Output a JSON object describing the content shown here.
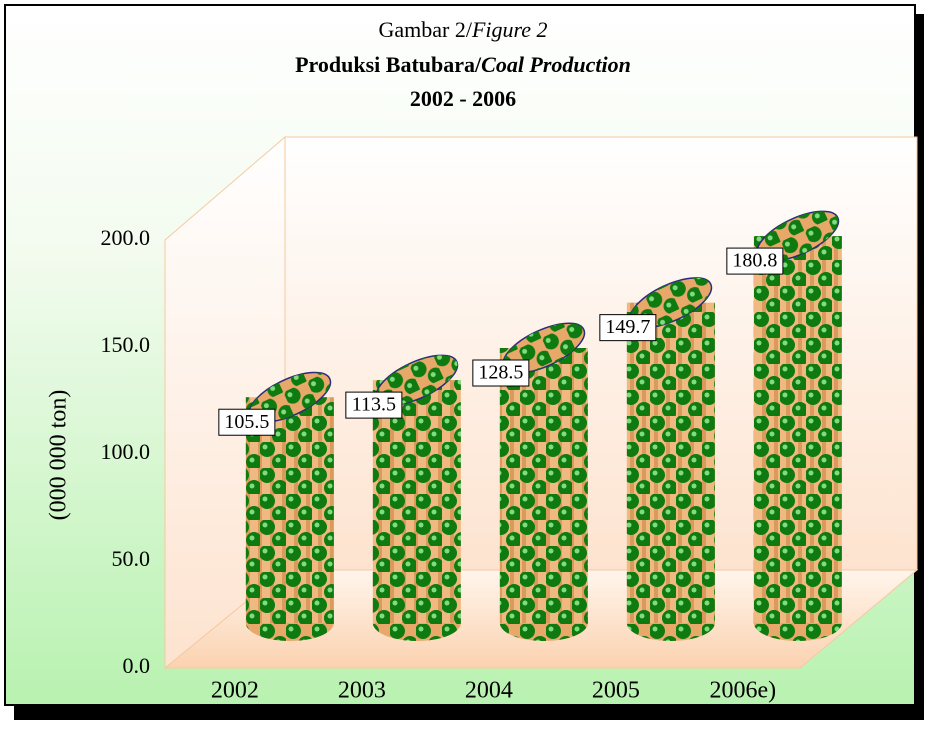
{
  "chart_data": {
    "type": "bar3d",
    "title": [
      "Gambar 2/",
      "Figure 2"
    ],
    "subtitle": [
      "Produksi Batubara/",
      "Coal Production"
    ],
    "period": "2002 - 2006",
    "y_label": "(000 000 ton)",
    "categories": [
      "2002",
      "2003",
      "2004",
      "2005",
      "2006e)"
    ],
    "values": [
      105.5,
      113.5,
      128.5,
      149.7,
      180.8
    ],
    "ylim": [
      0,
      200
    ],
    "yticks": [
      {
        "value": 0,
        "label": "0.0"
      },
      {
        "value": 50,
        "label": "50.0"
      },
      {
        "value": 100,
        "label": "100.0"
      },
      {
        "value": 150,
        "label": "150.0"
      },
      {
        "value": 200,
        "label": "200.0"
      }
    ],
    "color": "#e8a86a",
    "dot_color": "#0f7a0f",
    "grid": false
  }
}
